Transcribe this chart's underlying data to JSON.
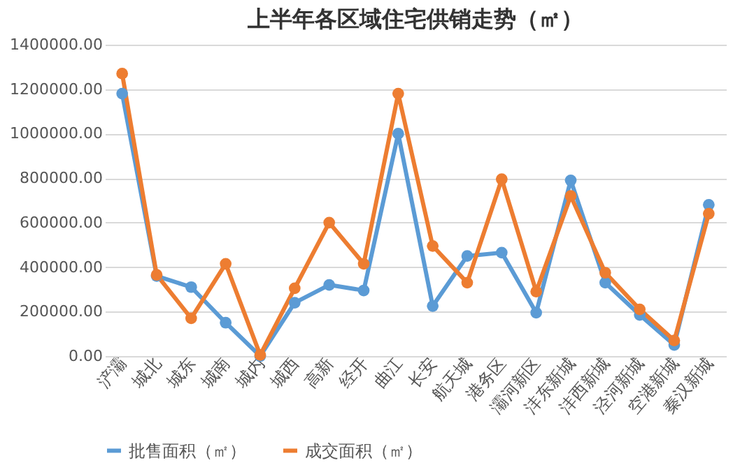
{
  "chart_data": {
    "type": "line",
    "title": "上半年各区域住宅供销走势（㎡）",
    "categories": [
      "浐灞",
      "城北",
      "城东",
      "城南",
      "城内",
      "城西",
      "高新",
      "经开",
      "曲江",
      "长安",
      "航天城",
      "港务区",
      "灞河新区",
      "沣东新城",
      "沣西新城",
      "泾河新城",
      "空港新城",
      "秦汉新城"
    ],
    "series": [
      {
        "name": "批售面积（㎡）",
        "color": "#5b9bd5",
        "values": [
          1180000,
          360000,
          310000,
          150000,
          0,
          240000,
          320000,
          295000,
          1000000,
          225000,
          450000,
          465000,
          195000,
          790000,
          330000,
          185000,
          50000,
          680000
        ]
      },
      {
        "name": "成交面积（㎡）",
        "color": "#ed7d31",
        "values": [
          1270000,
          365000,
          170000,
          415000,
          5000,
          305000,
          600000,
          415000,
          1180000,
          495000,
          330000,
          795000,
          290000,
          720000,
          375000,
          210000,
          70000,
          640000
        ]
      }
    ],
    "ylim": [
      0,
      1400000
    ],
    "yticks": [
      {
        "value": 0,
        "label": "0.00"
      },
      {
        "value": 200000,
        "label": "200000.00"
      },
      {
        "value": 400000,
        "label": "400000.00"
      },
      {
        "value": 600000,
        "label": "600000.00"
      },
      {
        "value": 800000,
        "label": "800000.00"
      },
      {
        "value": 1000000,
        "label": "1000000.00"
      },
      {
        "value": 1200000,
        "label": "1200000.00"
      },
      {
        "value": 1400000,
        "label": "1400000.00"
      }
    ],
    "grid": "y",
    "legend": "bottom",
    "marker": "circle",
    "line_style": "solid"
  }
}
